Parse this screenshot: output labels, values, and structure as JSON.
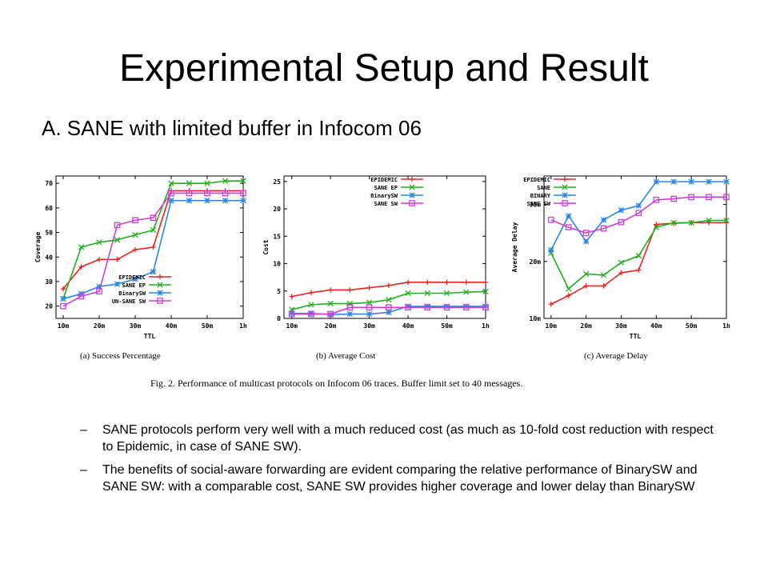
{
  "slide": {
    "title": "Experimental Setup and Result",
    "subtitle": "A. SANE with limited buffer in Infocom 06",
    "figure_caption": "Fig. 2.  Performance of multicast protocols on Infocom 06 traces. Buffer limit set to 40 messages.",
    "bullet_marker": "–",
    "bullets": [
      "SANE protocols perform very well with a much reduced cost (as much as 10-fold cost reduction with respect to Epidemic, in case of SANE SW).",
      "The benefits of social-aware forwarding are evident comparing the relative performance of BinarySW and SANE SW: with a comparable cost, SANE SW provides higher coverage and lower delay than BinarySW"
    ]
  },
  "colors": {
    "red": "#e8251f",
    "green": "#1fb01f",
    "blue": "#2b86e6",
    "magenta": "#c93fd6"
  },
  "chart_data": [
    {
      "type": "line",
      "caption": "(a) Success Percentage",
      "xlabel": "TTL",
      "ylabel": "Coverage",
      "x_ticks": [
        "10m",
        "20m",
        "30m",
        "40m",
        "50m",
        "1h"
      ],
      "x": [
        10,
        15,
        20,
        25,
        30,
        35,
        40,
        45,
        50,
        55,
        60
      ],
      "xlim": [
        8,
        60
      ],
      "ylim": [
        15,
        73
      ],
      "y_ticks": [
        20,
        30,
        40,
        50,
        60,
        70
      ],
      "y_tick_labels": [
        "20",
        "30",
        "40",
        "50",
        "60",
        "70"
      ],
      "legend_position": "bottom-right",
      "series": [
        {
          "name": "EPIDEMIC",
          "color": "#e8251f",
          "marker": "+",
          "values": [
            27,
            36,
            39,
            39,
            43,
            44,
            67,
            67,
            67,
            67,
            67
          ]
        },
        {
          "name": "SANE EP",
          "color": "#1fb01f",
          "marker": "x",
          "values": [
            23,
            44,
            46,
            47,
            49,
            51,
            70,
            70,
            70,
            71,
            71
          ]
        },
        {
          "name": "BinarySW",
          "color": "#2b86e6",
          "marker": "*",
          "values": [
            23,
            25,
            28,
            29,
            31,
            34,
            63,
            63,
            63,
            63,
            63
          ]
        },
        {
          "name": "UN-SANE SW",
          "color": "#c93fd6",
          "marker": "s",
          "values": [
            20,
            24,
            26,
            53,
            55,
            56,
            66,
            66,
            66,
            66,
            66
          ]
        }
      ]
    },
    {
      "type": "line",
      "caption": "(b) Average Cost",
      "xlabel": "",
      "ylabel": "Cost",
      "x_ticks": [
        "10m",
        "20m",
        "30m",
        "40m",
        "50m",
        "1h"
      ],
      "x": [
        10,
        15,
        20,
        25,
        30,
        35,
        40,
        45,
        50,
        55,
        60
      ],
      "xlim": [
        8,
        60
      ],
      "ylim": [
        0,
        26
      ],
      "y_ticks": [
        0,
        5,
        10,
        15,
        20,
        25
      ],
      "y_tick_labels": [
        "0",
        "5",
        "10",
        "15",
        "20",
        "25"
      ],
      "legend_position": "top-right",
      "series": [
        {
          "name": "EPIDEMIC",
          "color": "#e8251f",
          "marker": "+",
          "values": [
            4,
            4.7,
            5.2,
            5.2,
            5.6,
            6,
            6.6,
            6.6,
            6.6,
            6.6,
            6.6
          ]
        },
        {
          "name": "SANE EP",
          "color": "#1fb01f",
          "marker": "x",
          "values": [
            1.6,
            2.5,
            2.7,
            2.7,
            2.9,
            3.4,
            4.6,
            4.6,
            4.6,
            4.8,
            4.9
          ]
        },
        {
          "name": "BinarySW",
          "color": "#2b86e6",
          "marker": "*",
          "values": [
            0.9,
            0.9,
            0.7,
            0.8,
            0.8,
            1.1,
            2.2,
            2.2,
            2.2,
            2.2,
            2.2
          ]
        },
        {
          "name": "SANE SW",
          "color": "#c93fd6",
          "marker": "s",
          "values": [
            0.8,
            0.8,
            0.8,
            2,
            2,
            2,
            2,
            2,
            2,
            2,
            2
          ]
        }
      ]
    },
    {
      "type": "line",
      "caption": "(c) Average Delay",
      "xlabel": "TTL",
      "ylabel": "Average Delay",
      "x_ticks": [
        "10m",
        "20m",
        "30m",
        "40m",
        "50m",
        "1h"
      ],
      "x": [
        10,
        15,
        20,
        25,
        30,
        35,
        40,
        45,
        50,
        55,
        60
      ],
      "xlim": [
        8,
        60
      ],
      "ylim": [
        10,
        35
      ],
      "y_ticks": [
        10,
        20,
        30
      ],
      "y_tick_labels": [
        "10m",
        "20m",
        "30m"
      ],
      "legend_position": "top-left",
      "series": [
        {
          "name": "EPIDEMIC",
          "color": "#e8251f",
          "marker": "+",
          "values": [
            12.5,
            14,
            15.7,
            15.7,
            18,
            18.5,
            26.5,
            26.7,
            26.8,
            26.8,
            26.8
          ]
        },
        {
          "name": "SANE",
          "color": "#1fb01f",
          "marker": "x",
          "values": [
            21.5,
            15.2,
            17.8,
            17.6,
            19.8,
            21,
            26,
            26.8,
            26.8,
            27.2,
            27.2
          ]
        },
        {
          "name": "BINARY",
          "color": "#2b86e6",
          "marker": "*",
          "values": [
            22,
            28,
            23.5,
            27.3,
            29,
            29.8,
            34,
            34,
            34,
            34,
            34
          ]
        },
        {
          "name": "SANE SW",
          "color": "#c93fd6",
          "marker": "s",
          "values": [
            27.3,
            26,
            25,
            25.8,
            26.9,
            28.5,
            30.8,
            31,
            31.3,
            31.3,
            31.3
          ]
        }
      ]
    }
  ]
}
